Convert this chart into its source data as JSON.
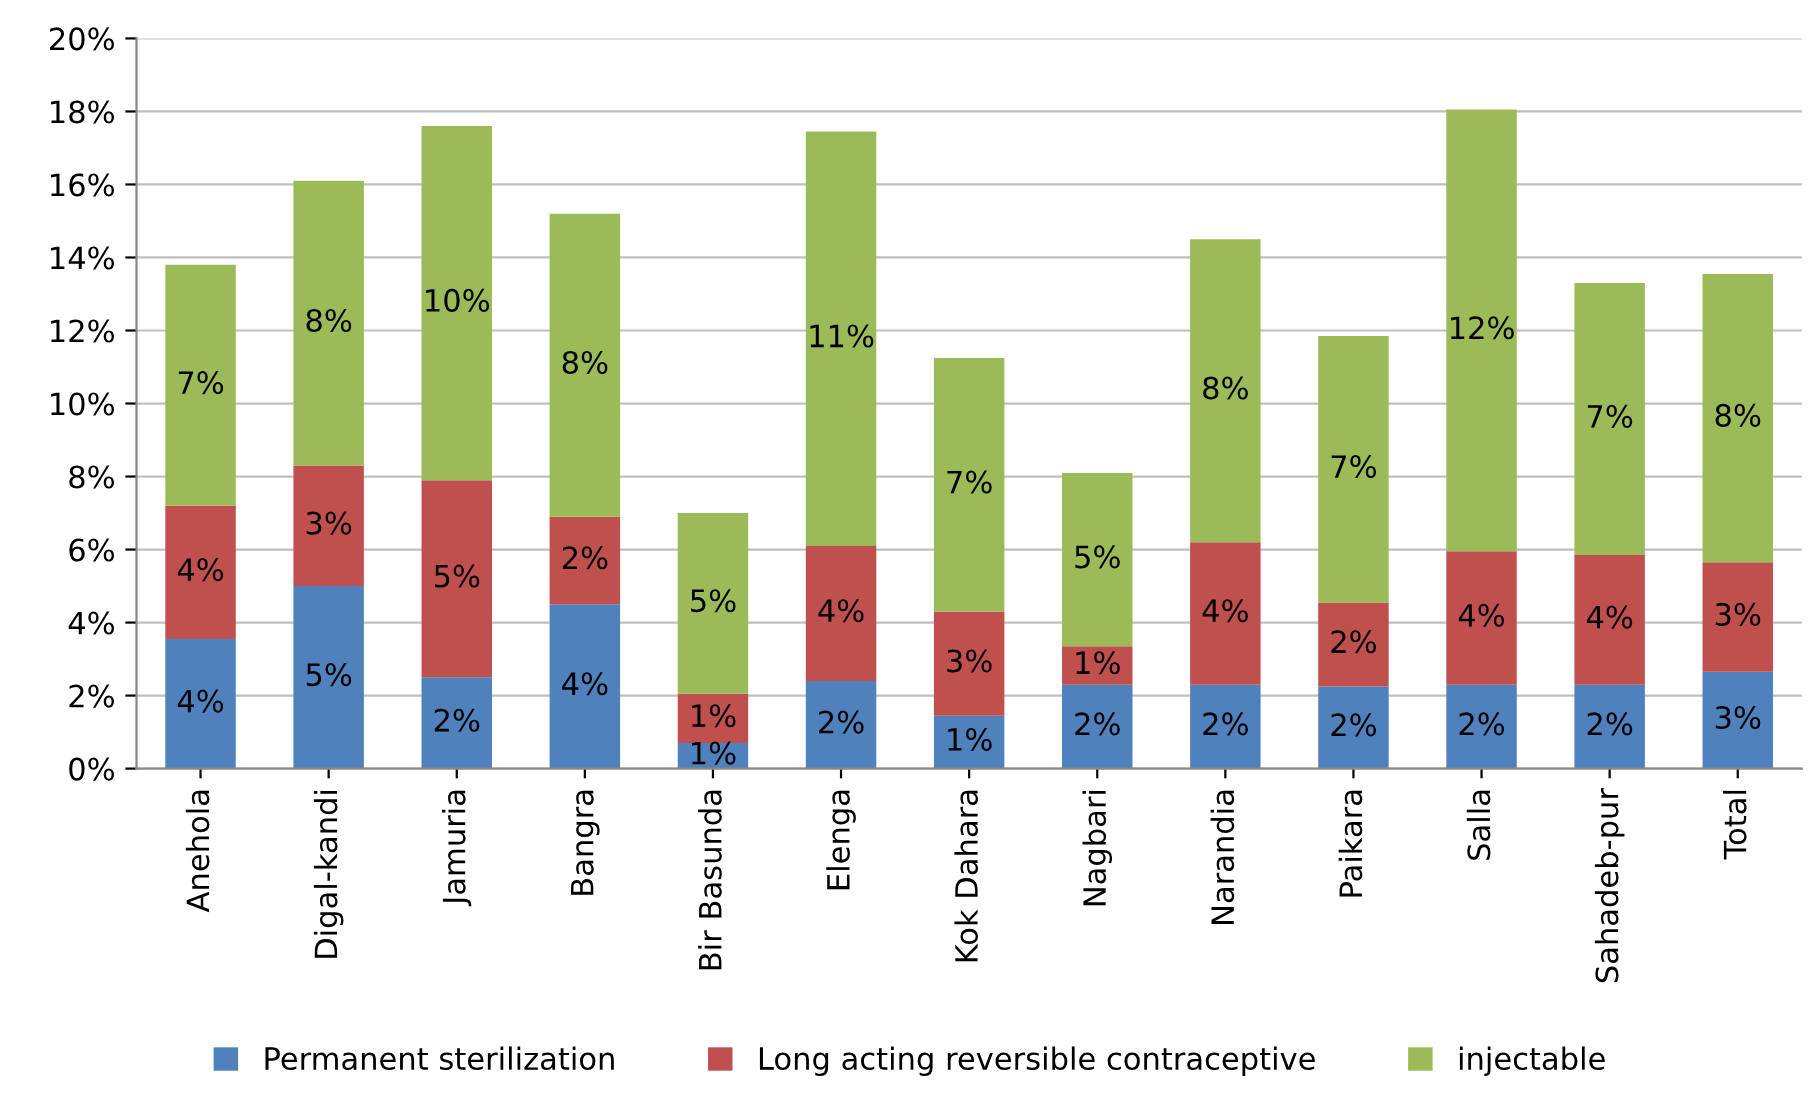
{
  "chart_data": {
    "type": "bar",
    "stacked": true,
    "categories": [
      "Anehola",
      "Digal-kandi",
      "Jamuria",
      "Bangra",
      "Bir Basunda",
      "Elenga",
      "Kok Dahara",
      "Nagbari",
      "Narandia",
      "Paikara",
      "Salla",
      "Sahadeb-pur",
      "Total"
    ],
    "series": [
      {
        "name": "Permanent sterilization",
        "color": "#4f81bd",
        "values": [
          3.55,
          5.0,
          2.5,
          4.5,
          0.7,
          2.4,
          1.45,
          2.3,
          2.3,
          2.25,
          2.3,
          2.3,
          2.65
        ],
        "value_labels": [
          "4%",
          "5%",
          "2%",
          "4%",
          "1%",
          "2%",
          "1%",
          "2%",
          "2%",
          "2%",
          "2%",
          "2%",
          "3%"
        ]
      },
      {
        "name": "Long acting reversible contraceptive",
        "color": "#c0504d",
        "values": [
          3.65,
          3.3,
          5.4,
          2.4,
          1.35,
          3.7,
          2.85,
          1.05,
          3.9,
          2.3,
          3.65,
          3.55,
          3.0
        ],
        "value_labels": [
          "4%",
          "3%",
          "5%",
          "2%",
          "1%",
          "4%",
          "3%",
          "1%",
          "4%",
          "2%",
          "4%",
          "4%",
          "3%"
        ]
      },
      {
        "name": "injectable",
        "color": "#9bbb59",
        "values": [
          6.6,
          7.8,
          9.7,
          8.3,
          4.95,
          11.35,
          6.95,
          4.75,
          8.3,
          7.3,
          12.1,
          7.45,
          7.9
        ],
        "value_labels": [
          "7%",
          "8%",
          "10%",
          "8%",
          "5%",
          "11%",
          "7%",
          "5%",
          "8%",
          "7%",
          "12%",
          "7%",
          "8%"
        ]
      }
    ],
    "ylim": [
      0,
      20
    ],
    "yticks": [
      {
        "value": 0,
        "label": "0%"
      },
      {
        "value": 2,
        "label": "2%"
      },
      {
        "value": 4,
        "label": "4%"
      },
      {
        "value": 6,
        "label": "6%"
      },
      {
        "value": 8,
        "label": "8%"
      },
      {
        "value": 10,
        "label": "10%"
      },
      {
        "value": 12,
        "label": "12%"
      },
      {
        "value": 14,
        "label": "14%"
      },
      {
        "value": 16,
        "label": "16%"
      },
      {
        "value": 18,
        "label": "18%"
      },
      {
        "value": 20,
        "label": "20%"
      }
    ],
    "grid": "y",
    "legend": "bottom"
  }
}
